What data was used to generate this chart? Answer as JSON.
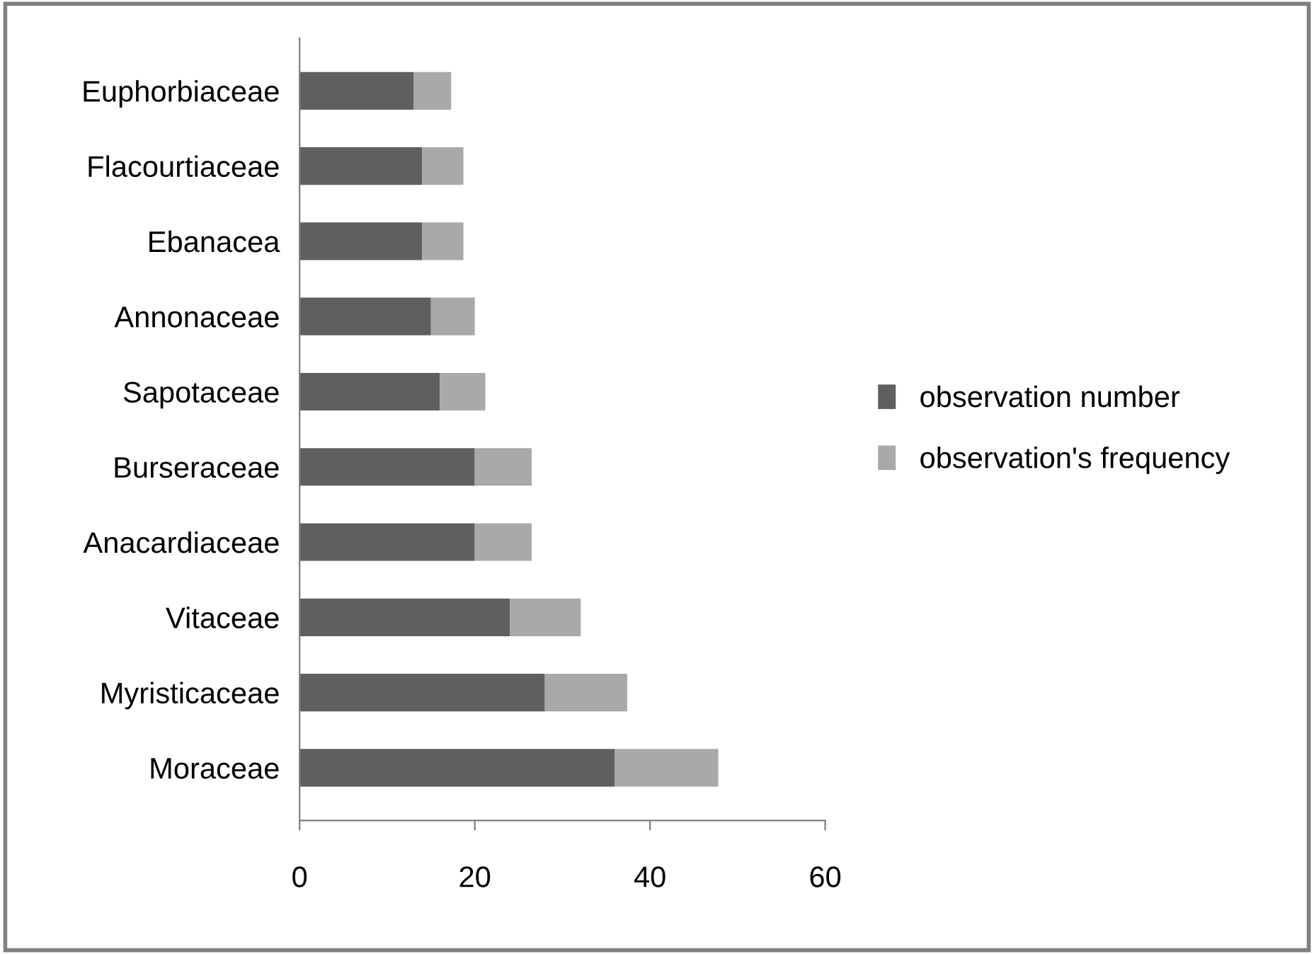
{
  "chart_data": {
    "type": "bar",
    "orientation": "horizontal",
    "stacked": true,
    "categories": [
      "Euphorbiaceae",
      "Flacourtiaceae",
      "Ebanacea",
      "Annonaceae",
      "Sapotaceae",
      "Burseraceae",
      "Anacardiaceae",
      "Vitaceae",
      "Myristicaceae",
      "Moraceae"
    ],
    "series": [
      {
        "name": "observation number",
        "color": "#5f5f5f",
        "values": [
          13,
          14,
          14,
          15,
          16,
          20,
          20,
          24,
          28,
          36
        ]
      },
      {
        "name": "observation's frequency",
        "color": "#a9a9a9",
        "values": [
          4.3,
          4.7,
          4.7,
          5,
          5.2,
          6.5,
          6.5,
          8.1,
          9.4,
          11.8
        ]
      }
    ],
    "xlim": [
      0,
      60
    ],
    "xticks": [
      0,
      20,
      40,
      60
    ],
    "grid": false,
    "legend": "right"
  }
}
